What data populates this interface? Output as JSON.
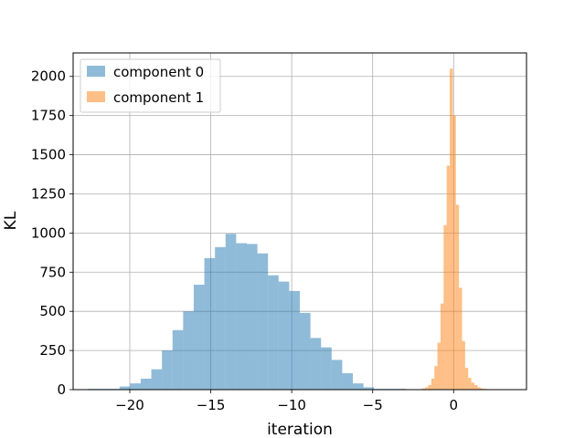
{
  "chart_data": {
    "type": "bar",
    "title": "",
    "xlabel": "iteration",
    "ylabel": "KL",
    "xlim": [
      -23.5,
      4.5
    ],
    "ylim": [
      0,
      2150
    ],
    "xticks": [
      -20,
      -15,
      -10,
      -5,
      0
    ],
    "xtick_labels": [
      "−20",
      "−15",
      "−10",
      "−5",
      "0"
    ],
    "yticks": [
      0,
      250,
      500,
      750,
      1000,
      1250,
      1500,
      1750,
      2000
    ],
    "ytick_labels": [
      "0",
      "250",
      "500",
      "750",
      "1000",
      "1250",
      "1500",
      "1750",
      "2000"
    ],
    "grid": true,
    "legend_position": "top-left",
    "series": [
      {
        "name": "component 0",
        "color": "#1f77b4",
        "opacity": 0.5,
        "bin_start": -22.6,
        "bin_width": 0.655,
        "values": [
          5,
          5,
          5,
          20,
          40,
          70,
          130,
          250,
          380,
          500,
          670,
          840,
          910,
          995,
          935,
          930,
          870,
          730,
          690,
          630,
          490,
          330,
          270,
          190,
          105,
          40,
          15,
          5,
          5,
          5
        ]
      },
      {
        "name": "component 1",
        "color": "#ff7f0e",
        "opacity": 0.5,
        "bin_start": -1.95,
        "bin_width": 0.19,
        "values": [
          8,
          15,
          30,
          70,
          150,
          300,
          550,
          1050,
          1430,
          2050,
          1750,
          1180,
          650,
          310,
          140,
          75,
          45,
          30,
          15,
          8,
          5,
          3,
          2
        ]
      }
    ]
  }
}
